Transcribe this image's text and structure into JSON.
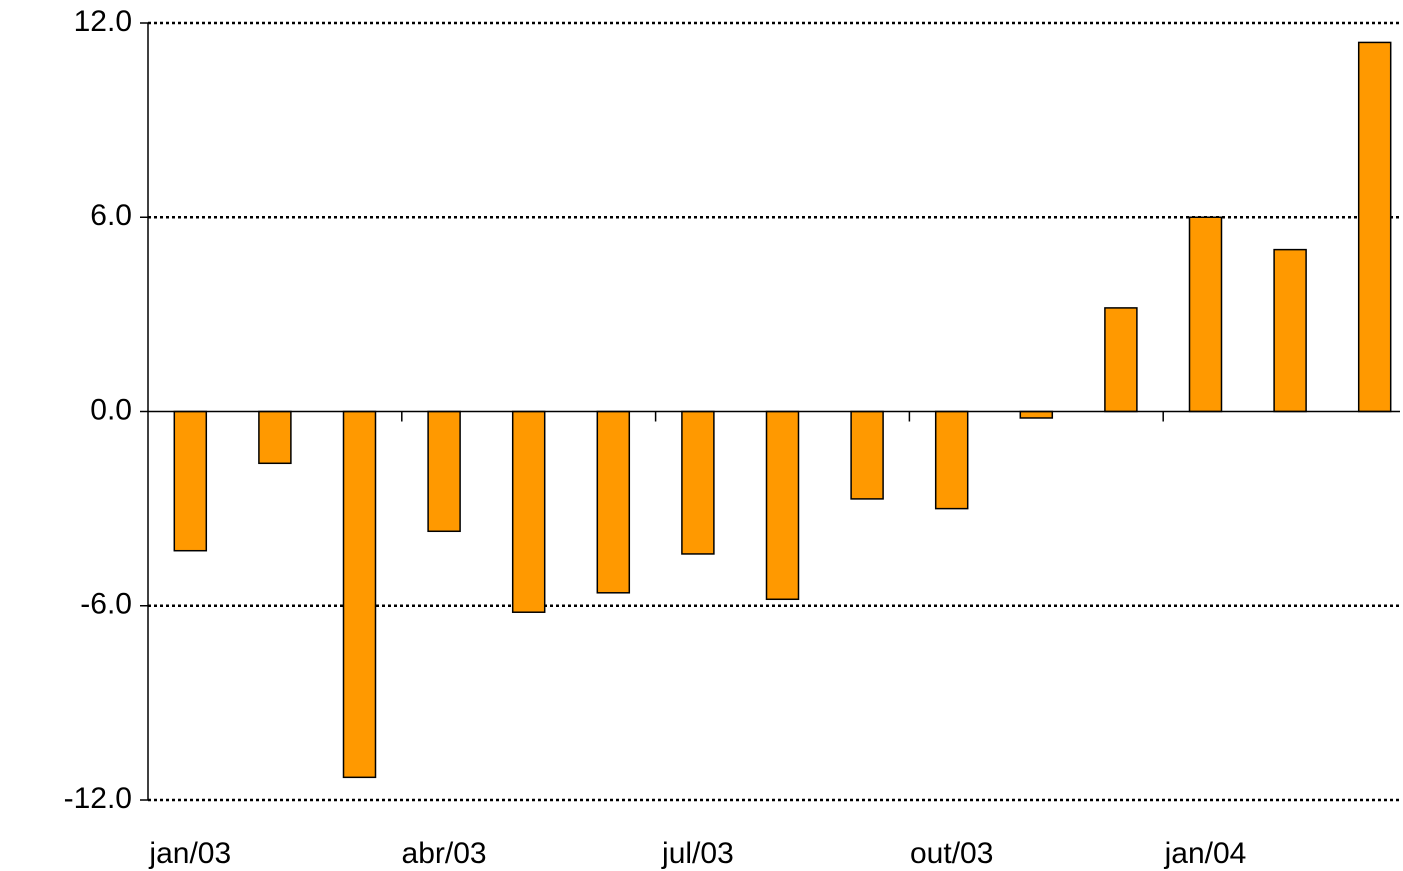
{
  "chart_data": {
    "type": "bar",
    "categories": [
      "jan/03",
      null,
      null,
      "abr/03",
      null,
      null,
      "jul/03",
      null,
      null,
      "out/03",
      null,
      null,
      "jan/04",
      null,
      null
    ],
    "values": [
      -4.3,
      -1.6,
      -11.3,
      -3.7,
      -6.2,
      -5.6,
      -4.4,
      -5.8,
      -2.7,
      -3.0,
      -0.2,
      3.2,
      6.0,
      5.0,
      11.4
    ],
    "color": "#ff9900",
    "ylim": [
      -12,
      12
    ],
    "yticks": [
      {
        "value": -12,
        "label": "-12.0"
      },
      {
        "value": -6,
        "label": "-6.0"
      },
      {
        "value": 0,
        "label": "0.0"
      },
      {
        "value": 6,
        "label": "6.0"
      },
      {
        "value": 12,
        "label": "12.0"
      }
    ],
    "grid": true
  }
}
